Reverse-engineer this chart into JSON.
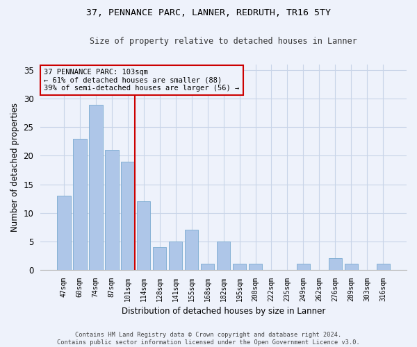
{
  "title1": "37, PENNANCE PARC, LANNER, REDRUTH, TR16 5TY",
  "title2": "Size of property relative to detached houses in Lanner",
  "xlabel": "Distribution of detached houses by size in Lanner",
  "ylabel": "Number of detached properties",
  "categories": [
    "47sqm",
    "60sqm",
    "74sqm",
    "87sqm",
    "101sqm",
    "114sqm",
    "128sqm",
    "141sqm",
    "155sqm",
    "168sqm",
    "182sqm",
    "195sqm",
    "208sqm",
    "222sqm",
    "235sqm",
    "249sqm",
    "262sqm",
    "276sqm",
    "289sqm",
    "303sqm",
    "316sqm"
  ],
  "values": [
    13,
    23,
    29,
    21,
    19,
    12,
    4,
    5,
    7,
    1,
    5,
    1,
    1,
    0,
    0,
    1,
    0,
    2,
    1,
    0,
    1
  ],
  "bar_color": "#aec6e8",
  "bar_edge_color": "#7aaad0",
  "highlight_color": "#cc0000",
  "annotation_text": "37 PENNANCE PARC: 103sqm\n← 61% of detached houses are smaller (88)\n39% of semi-detached houses are larger (56) →",
  "annotation_box_color": "#cc0000",
  "ylim": [
    0,
    36
  ],
  "yticks": [
    0,
    5,
    10,
    15,
    20,
    25,
    30,
    35
  ],
  "footer1": "Contains HM Land Registry data © Crown copyright and database right 2024.",
  "footer2": "Contains public sector information licensed under the Open Government Licence v3.0.",
  "bg_color": "#eef2fb",
  "grid_color": "#c8d4e8"
}
